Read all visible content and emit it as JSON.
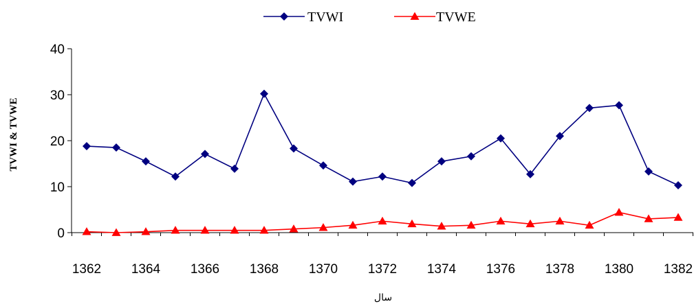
{
  "chart_data": {
    "type": "line",
    "title": "",
    "xlabel": "سال",
    "ylabel": "TVWI & TVWE",
    "x": [
      1362,
      1363,
      1364,
      1365,
      1366,
      1367,
      1368,
      1369,
      1370,
      1371,
      1372,
      1373,
      1374,
      1375,
      1376,
      1377,
      1378,
      1379,
      1380,
      1381,
      1382
    ],
    "x_tick_labels": [
      "1362",
      "1364",
      "1366",
      "1368",
      "1370",
      "1372",
      "1374",
      "1376",
      "1378",
      "1380",
      "1382"
    ],
    "y_tick_labels": [
      "0",
      "10",
      "20",
      "30",
      "40"
    ],
    "ylim": [
      0,
      40
    ],
    "grid": false,
    "legend_position": "top",
    "series": [
      {
        "name": "TVWI",
        "color": "#000080",
        "marker": "diamond",
        "values": [
          18.8,
          18.5,
          15.5,
          12.2,
          17.1,
          13.9,
          30.2,
          18.3,
          14.6,
          11.1,
          12.2,
          10.8,
          15.5,
          16.6,
          20.5,
          12.7,
          21.0,
          27.1,
          27.7,
          13.3,
          10.3
        ]
      },
      {
        "name": "TVWE",
        "color": "#ff0000",
        "marker": "triangle",
        "values": [
          0.2,
          0.0,
          0.2,
          0.5,
          0.5,
          0.5,
          0.5,
          0.8,
          1.1,
          1.6,
          2.5,
          1.9,
          1.4,
          1.6,
          2.5,
          1.9,
          2.5,
          1.6,
          4.4,
          3.0,
          3.3
        ]
      }
    ]
  }
}
